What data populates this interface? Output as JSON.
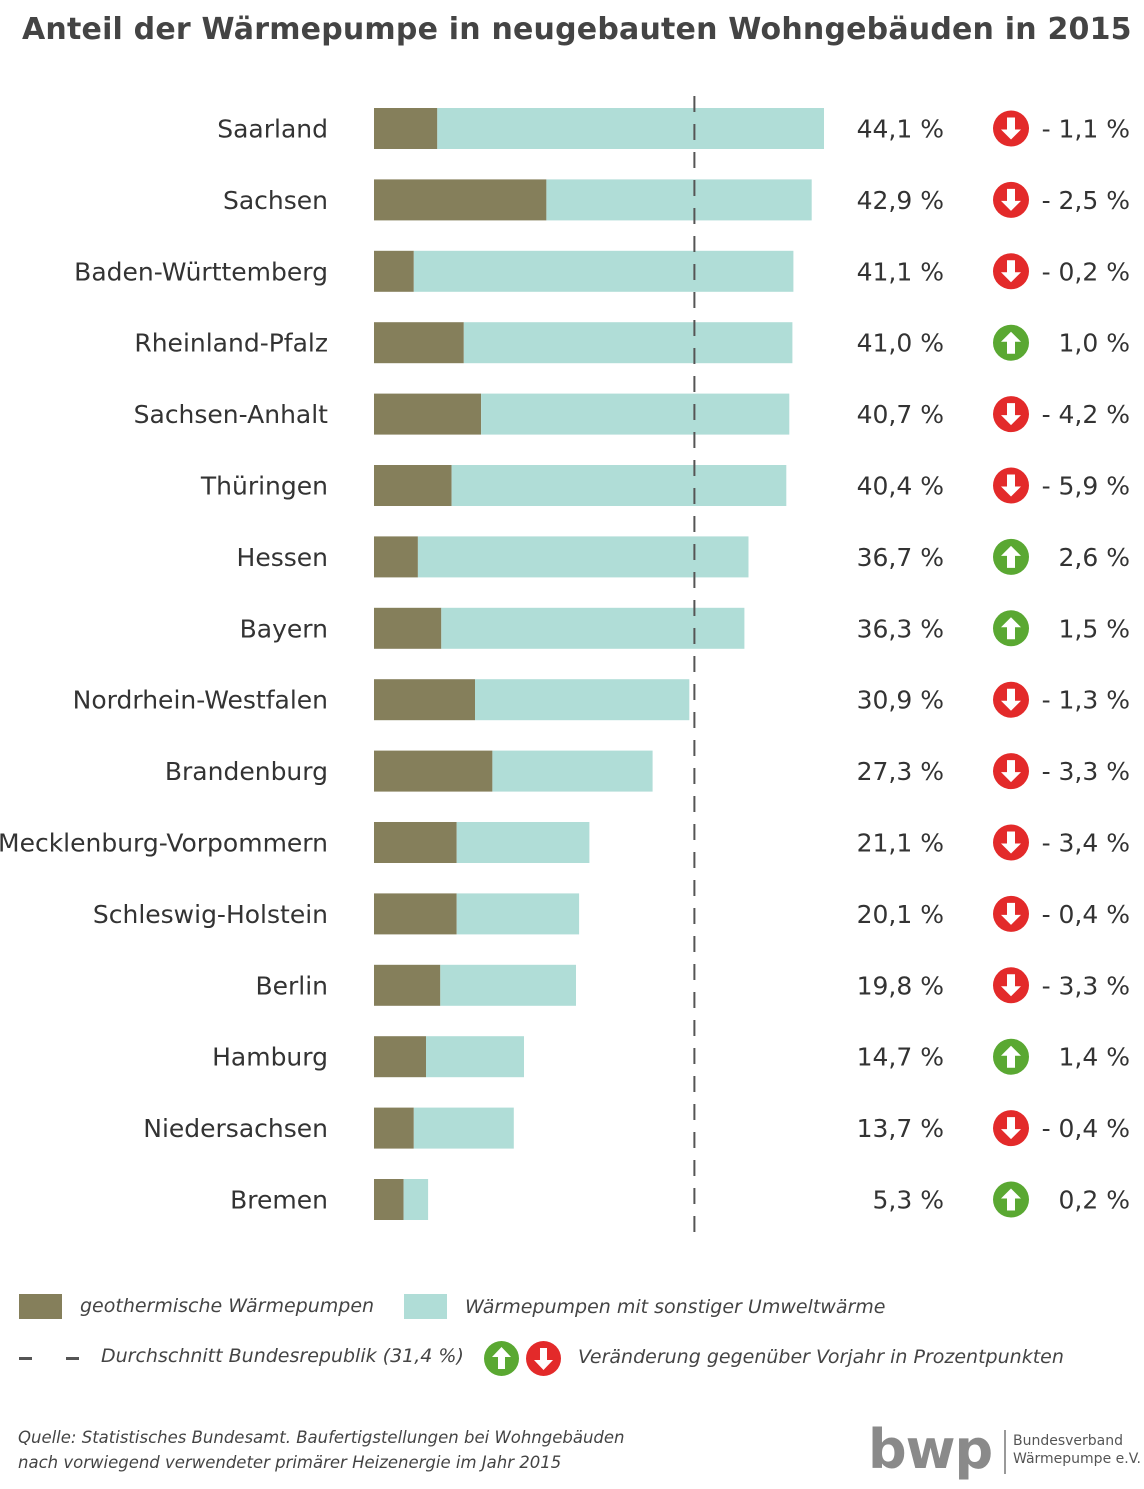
{
  "chart_data": {
    "type": "bar",
    "title": "Anteil der Wärmepumpe in neugebauten Wohngebäuden in 2015",
    "categories": [
      "Saarland",
      "Sachsen",
      "Baden-Württemberg",
      "Rheinland-Pfalz",
      "Sachsen-Anhalt",
      "Thüringen",
      "Hessen",
      "Bayern",
      "Nordrhein-Westfalen",
      "Brandenburg",
      "Mecklenburg-Vorpommern",
      "Schleswig-Holstein",
      "Berlin",
      "Hamburg",
      "Niedersachsen",
      "Bremen"
    ],
    "stacked": true,
    "series": [
      {
        "name": "geothermische Wärmepumpen",
        "color": "#857f5b",
        "values": [
          6.2,
          16.9,
          3.9,
          8.8,
          10.5,
          7.6,
          4.3,
          6.6,
          9.9,
          11.6,
          8.1,
          8.1,
          6.5,
          5.1,
          3.9,
          2.9
        ]
      },
      {
        "name": "Wärmepumpen mit sonstiger Umweltwärme",
        "color": "#b0ddd7",
        "values": [
          37.9,
          26.0,
          37.2,
          32.2,
          30.2,
          32.8,
          32.4,
          29.7,
          21.0,
          15.7,
          13.0,
          12.0,
          13.3,
          9.6,
          9.8,
          2.4
        ]
      }
    ],
    "totals": [
      44.1,
      42.9,
      41.1,
      41.0,
      40.7,
      40.4,
      36.7,
      36.3,
      30.9,
      27.3,
      21.1,
      20.1,
      19.8,
      14.7,
      13.7,
      5.3
    ],
    "total_labels": [
      "44,1 %",
      "42,9 %",
      "41,1 %",
      "41,0 %",
      "40,7 %",
      "40,4 %",
      "36,7 %",
      "36,3 %",
      "30,9 %",
      "27,3 %",
      "21,1 %",
      "20,1 %",
      "19,8 %",
      "14,7 %",
      "13,7 %",
      "5,3 %"
    ],
    "change_direction": [
      "down",
      "down",
      "down",
      "up",
      "down",
      "down",
      "up",
      "up",
      "down",
      "down",
      "down",
      "down",
      "down",
      "up",
      "down",
      "up"
    ],
    "change_labels": [
      "- 1,1 %",
      "- 2,5 %",
      "- 0,2 %",
      "1,0 %",
      "- 4,2 %",
      "- 5,9 %",
      "2,6 %",
      "1,5 %",
      "- 1,3 %",
      "- 3,3 %",
      "- 3,4 %",
      "- 0,4 %",
      "- 3,3 %",
      "1,4 %",
      "- 0,4 %",
      "0,2 %"
    ],
    "reference_line": {
      "label": "Durchschnitt Bundesrepublik (31,4 %)",
      "value": 31.4,
      "style": "dashed"
    },
    "xlim": [
      0,
      44.1
    ],
    "grid": false,
    "legend_position": "bottom"
  },
  "colors": {
    "up": "#5aa832",
    "down": "#e32a2a",
    "geo": "#857f5b",
    "other": "#b0ddd7"
  },
  "legend": {
    "geo": "geothermische Wärmepumpen",
    "other": "Wärmepumpen mit sonstiger Umweltwärme",
    "average": "Durchschnitt Bundesrepublik (31,4 %)",
    "change": "Veränderung gegenüber Vorjahr in Prozentpunkten"
  },
  "icons": {
    "up": "arrow-up-icon",
    "down": "arrow-down-icon"
  },
  "source": {
    "line1": "Quelle: Statistisches Bundesamt. Baufertigstellungen bei Wohngebäuden",
    "line2": "nach vorwiegend verwendeter primärer Heizenergie im Jahr 2015"
  },
  "logo": {
    "mark": "bwp",
    "line1": "Bundesverband",
    "line2": "Wärmepumpe e.V."
  }
}
